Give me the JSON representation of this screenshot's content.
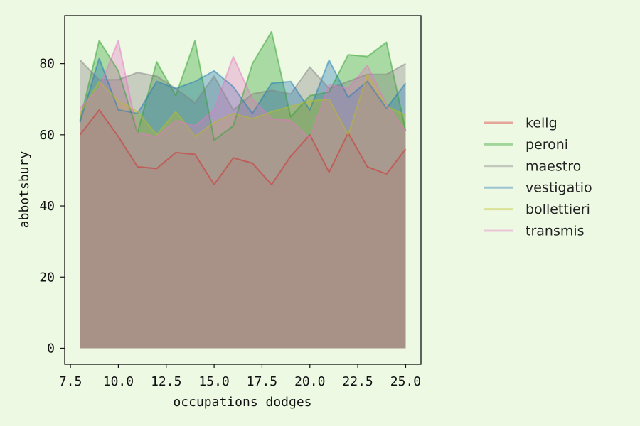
{
  "chart_data": {
    "type": "area",
    "x": [
      8,
      9,
      10,
      11,
      12,
      13,
      14,
      15,
      16,
      17,
      18,
      19,
      20,
      21,
      22,
      23,
      24,
      25
    ],
    "xlabel": "occupations dodges",
    "ylabel": "abbotsbury",
    "xlim": [
      7.2,
      25.8
    ],
    "ylim": [
      -4.5,
      93.5
    ],
    "xticks": [
      7.5,
      10.0,
      12.5,
      15.0,
      17.5,
      20.0,
      22.5,
      25.0
    ],
    "xtick_labels": [
      "7.5",
      "10.0",
      "12.5",
      "15.0",
      "17.5",
      "20.0",
      "22.5",
      "25.0"
    ],
    "yticks": [
      0,
      20,
      40,
      60,
      80
    ],
    "ytick_labels": [
      "0",
      "20",
      "40",
      "60",
      "80"
    ],
    "grid": false,
    "legend_position": "right",
    "series": [
      {
        "name": "kellg",
        "color": "#d62728",
        "values": [
          60,
          67,
          59.5,
          51,
          50.5,
          55,
          54.5,
          46,
          53.5,
          52,
          46,
          54,
          60,
          49.5,
          60.5,
          51,
          49,
          56
        ]
      },
      {
        "name": "peroni",
        "color": "#2ca02c",
        "values": [
          64,
          86.5,
          78,
          60.5,
          80.5,
          71,
          86.5,
          58.5,
          62.5,
          80,
          89,
          65,
          71,
          72,
          82.5,
          82,
          86,
          61
        ]
      },
      {
        "name": "maestro",
        "color": "#7f7f7f",
        "values": [
          81,
          75.5,
          75.5,
          77.5,
          76.5,
          73,
          69,
          76.5,
          67,
          71.5,
          72.5,
          71.5,
          79,
          73,
          75,
          77,
          77,
          80
        ]
      },
      {
        "name": "vestigatio",
        "color": "#1f77b4",
        "values": [
          63.5,
          81.5,
          67,
          66,
          75,
          73,
          75,
          78,
          73.5,
          66,
          74.5,
          75,
          67,
          81,
          70.5,
          75,
          67.5,
          74.5
        ]
      },
      {
        "name": "bollettieri",
        "color": "#bcbd22",
        "values": [
          66,
          75,
          69.5,
          66.5,
          60,
          66.5,
          59.5,
          63.5,
          66,
          64.5,
          66.5,
          68,
          69.5,
          70,
          60,
          77,
          68,
          65.5
        ]
      },
      {
        "name": "transmis",
        "color": "#e377c2",
        "values": [
          67.5,
          73,
          86.5,
          60.5,
          59.5,
          64,
          62.5,
          67,
          82,
          70,
          64.5,
          64,
          59,
          74,
          73,
          79.5,
          68.5,
          61
        ]
      }
    ]
  }
}
